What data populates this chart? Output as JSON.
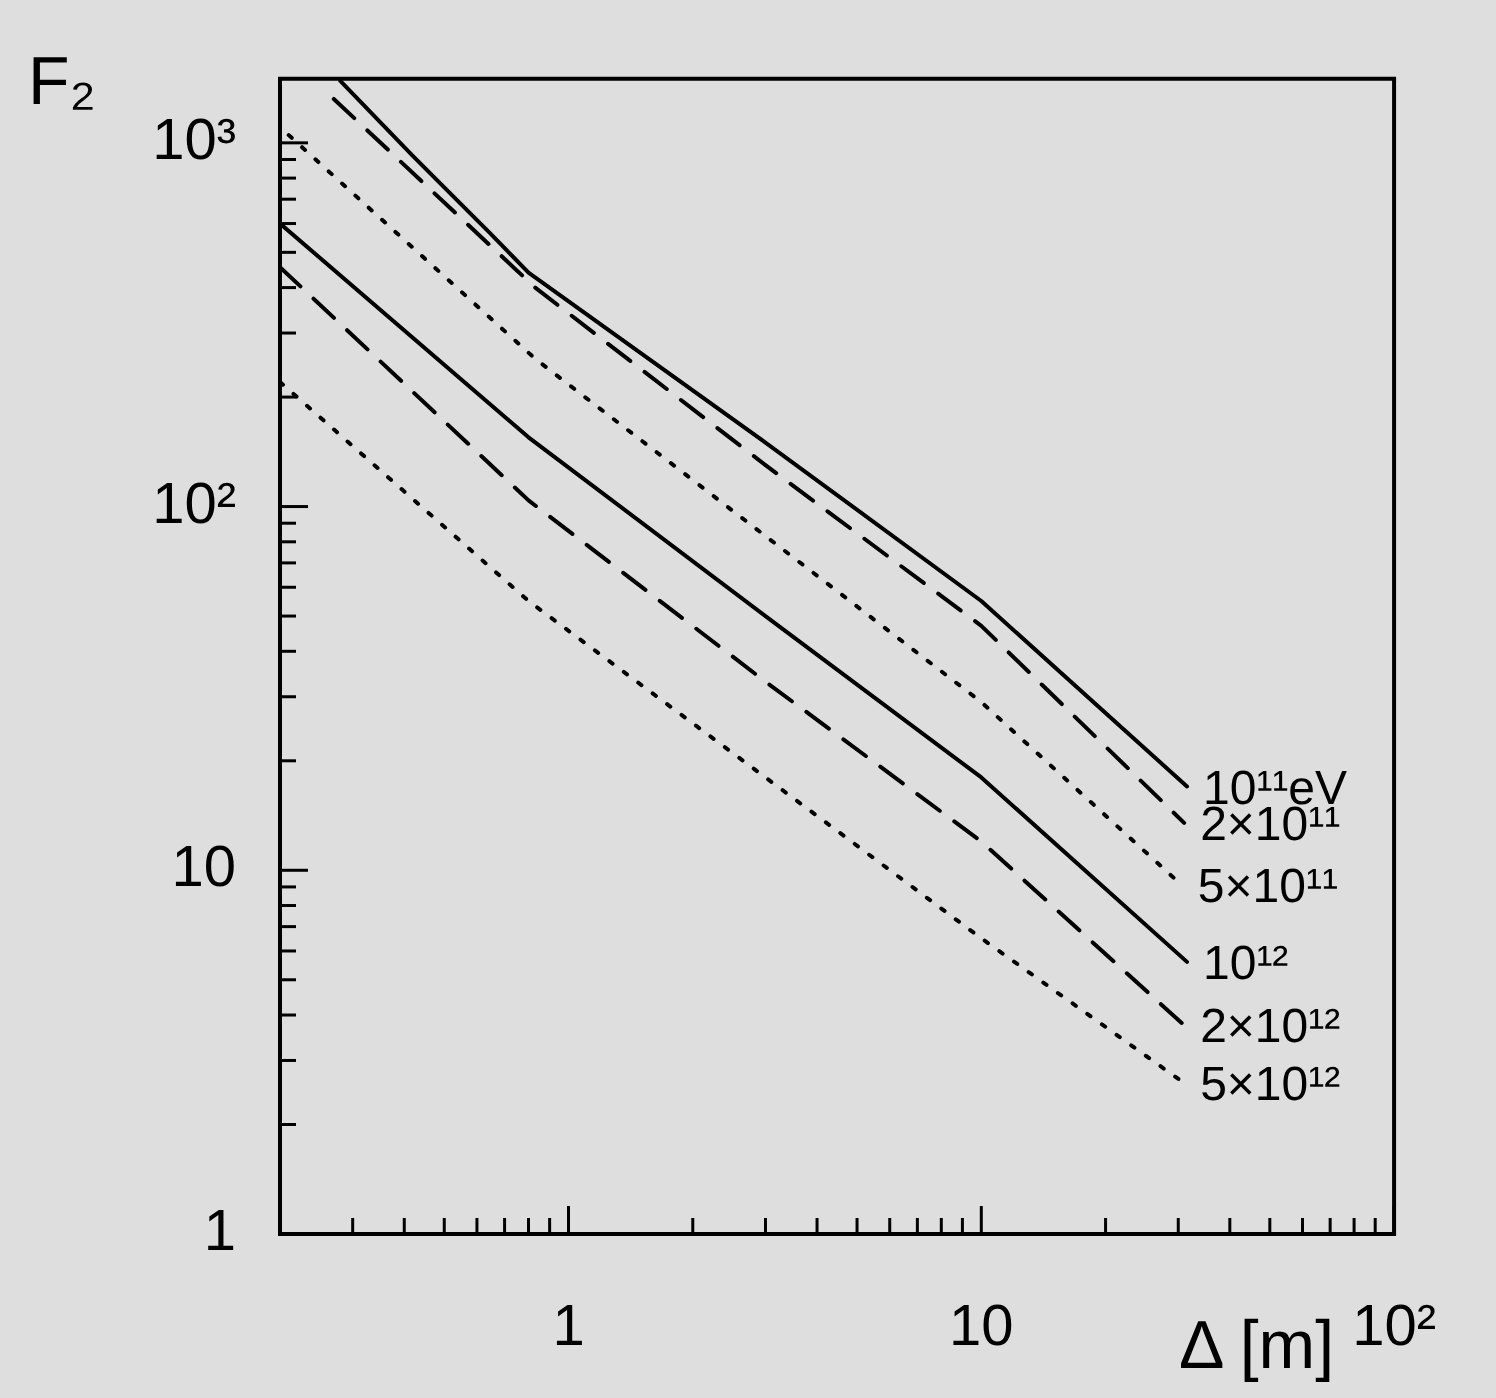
{
  "chart_data": {
    "type": "line",
    "xlabel": "Δ [m]",
    "ylabel": "F₂",
    "log": "xy",
    "grid": false,
    "legend": false,
    "marker": "none",
    "xlim": [
      0.2,
      100
    ],
    "ylim": [
      1,
      1500
    ],
    "xticks": [
      {
        "value": 0.3,
        "label": null
      },
      {
        "value": 0.4,
        "label": null
      },
      {
        "value": 0.5,
        "label": null
      },
      {
        "value": 0.6,
        "label": null
      },
      {
        "value": 0.7,
        "label": null
      },
      {
        "value": 0.8,
        "label": null
      },
      {
        "value": 0.9,
        "label": null
      },
      1,
      {
        "value": 2,
        "label": null
      },
      {
        "value": 3,
        "label": null
      },
      {
        "value": 4,
        "label": null
      },
      {
        "value": 5,
        "label": null
      },
      {
        "value": 6,
        "label": null
      },
      {
        "value": 7,
        "label": null
      },
      {
        "value": 8,
        "label": null
      },
      {
        "value": 9,
        "label": null
      },
      10,
      {
        "value": 20,
        "label": null
      },
      {
        "value": 30,
        "label": null
      },
      {
        "value": 40,
        "label": null
      },
      {
        "value": 50,
        "label": null
      },
      {
        "value": 60,
        "label": null
      },
      {
        "value": 70,
        "label": null
      },
      {
        "value": 80,
        "label": null
      },
      {
        "value": 90,
        "label": null
      },
      {
        "value": 100,
        "label": "10²"
      }
    ],
    "yticks": [
      1,
      {
        "value": 2,
        "label": null
      },
      {
        "value": 3,
        "label": null
      },
      {
        "value": 4,
        "label": null
      },
      {
        "value": 5,
        "label": null
      },
      {
        "value": 6,
        "label": null
      },
      {
        "value": 7,
        "label": null
      },
      {
        "value": 8,
        "label": null
      },
      {
        "value": 9,
        "label": null
      },
      10,
      {
        "value": 20,
        "label": null
      },
      {
        "value": 30,
        "label": null
      },
      {
        "value": 40,
        "label": null
      },
      {
        "value": 50,
        "label": null
      },
      {
        "value": 60,
        "label": null
      },
      {
        "value": 70,
        "label": null
      },
      {
        "value": 80,
        "label": null
      },
      {
        "value": 90,
        "label": null
      },
      {
        "value": 100,
        "label": "10²"
      },
      {
        "value": 200,
        "label": null
      },
      {
        "value": 300,
        "label": null
      },
      {
        "value": 400,
        "label": null
      },
      {
        "value": 500,
        "label": null
      },
      {
        "value": 600,
        "label": null
      },
      {
        "value": 700,
        "label": null
      },
      {
        "value": 800,
        "label": null
      },
      {
        "value": 900,
        "label": null
      },
      {
        "value": 1000,
        "label": "10³"
      }
    ],
    "series": [
      {
        "name": "10¹¹eV",
        "color": "#000000",
        "line_style": "solid",
        "x": [
          0.28,
          0.42,
          0.64,
          0.8,
          3,
          10,
          31.5
        ],
        "values": [
          1480,
          920,
          570,
          440,
          150,
          55,
          17
        ]
      },
      {
        "name": "2×10¹¹",
        "color": "#000000",
        "line_style": "dashed",
        "x": [
          0.27,
          0.83,
          3,
          10,
          31
        ],
        "values": [
          1320,
          400,
          130,
          47,
          13.5
        ]
      },
      {
        "name": "5×10¹¹",
        "color": "#000000",
        "line_style": "dotted",
        "x": [
          0.21,
          0.83,
          3,
          10,
          30.6
        ],
        "values": [
          1050,
          255,
          83,
          29,
          9.1
        ]
      },
      {
        "name": "10¹²",
        "color": "#000000",
        "line_style": "solid",
        "x": [
          0.2,
          0.8,
          3,
          10,
          31.5
        ],
        "values": [
          600,
          155,
          50,
          18,
          5.6
        ]
      },
      {
        "name": "2×10¹²",
        "color": "#000000",
        "line_style": "dashed",
        "x": [
          0.2,
          0.8,
          3,
          10,
          31
        ],
        "values": [
          455,
          104,
          33,
          12,
          3.75
        ]
      },
      {
        "name": "5×10¹²",
        "color": "#000000",
        "line_style": "dotted",
        "x": [
          0.2,
          0.8,
          3,
          10,
          31
        ],
        "values": [
          220,
          55,
          18,
          6.5,
          2.6
        ]
      }
    ]
  }
}
